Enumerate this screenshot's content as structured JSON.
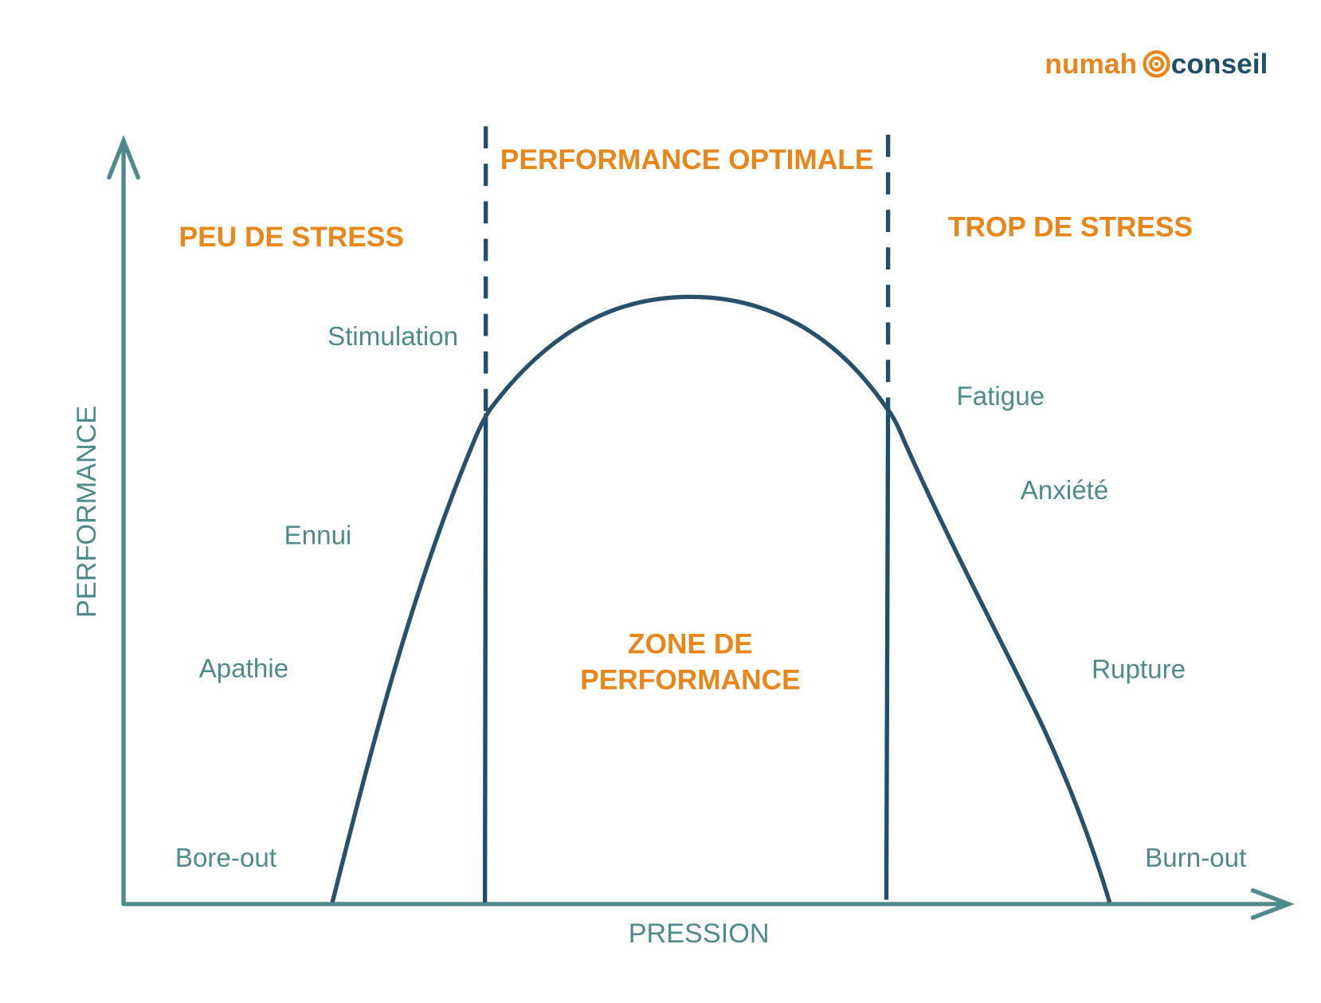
{
  "logo": {
    "left": "numah",
    "right": "conseil"
  },
  "axes": {
    "y": "PERFORMANCE",
    "x": "PRESSION"
  },
  "zones": [
    {
      "title": "PEU DE STRESS"
    },
    {
      "title": "PERFORMANCE OPTIMALE"
    },
    {
      "title": "TROP DE STRESS"
    }
  ],
  "center_label": [
    "ZONE DE",
    "PERFORMANCE"
  ],
  "left_labels": [
    "Stimulation",
    "Ennui",
    "Apathie",
    "Bore-out"
  ],
  "right_labels": [
    "Fatigue",
    "Anxiété",
    "Rupture",
    "Burn-out"
  ]
}
